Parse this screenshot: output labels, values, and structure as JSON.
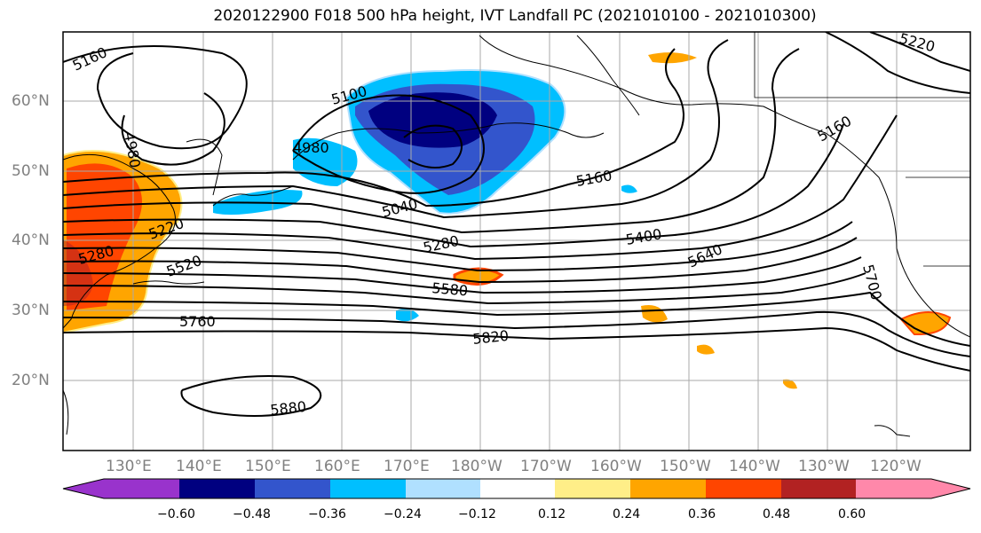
{
  "title": "2020122900 F018 500 hPa height, IVT Landfall PC (2021010100 - 2021010300)",
  "map": {
    "region": "North Pacific",
    "lat_labels": [
      "60°N",
      "50°N",
      "40°N",
      "30°N",
      "20°N"
    ],
    "lon_labels": [
      "130°E",
      "140°E",
      "150°E",
      "160°E",
      "170°E",
      "180°W",
      "170°W",
      "160°W",
      "150°W",
      "140°W",
      "130°W",
      "120°W"
    ],
    "gridlines": true,
    "contour_labels": [
      "5160",
      "5100",
      "4980",
      "4980",
      "5040",
      "5160",
      "5220",
      "5280",
      "5400",
      "5640",
      "5580",
      "5520",
      "5280",
      "5760",
      "5820",
      "5880",
      "5700",
      "5160",
      "5220"
    ]
  },
  "colorbar": {
    "ticks": [
      "−0.60",
      "−0.48",
      "−0.36",
      "−0.24",
      "−0.12",
      "0.12",
      "0.24",
      "0.36",
      "0.48",
      "0.60"
    ],
    "colors": [
      "#9933cc",
      "#000080",
      "#3355cc",
      "#00bfff",
      "#b0e0ff",
      "#ffffff",
      "#ffee88",
      "#ffa500",
      "#ff4500",
      "#b22222",
      "#ff88aa"
    ],
    "extend": "both"
  }
}
